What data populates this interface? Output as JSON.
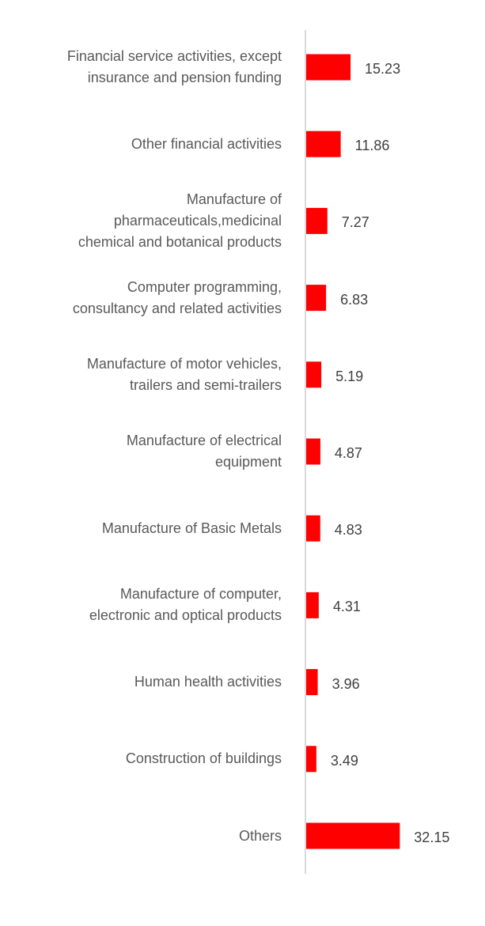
{
  "chart_data": {
    "type": "bar",
    "orientation": "horizontal",
    "title": "",
    "xlabel": "",
    "ylabel": "",
    "grid": false,
    "bar_color": "#ff0000",
    "categories": [
      "Financial service activities, except\ninsurance and pension funding",
      "Other financial activities",
      "Manufacture of\npharmaceuticals,medicinal\nchemical and botanical products",
      "Computer programming,\nconsultancy and related activities",
      "Manufacture of motor vehicles,\ntrailers and semi-trailers",
      "Manufacture of electrical\nequipment",
      "Manufacture of Basic Metals",
      "Manufacture of computer,\nelectronic and optical products",
      "Human health activities",
      "Construction of buildings",
      "Others"
    ],
    "values": [
      15.23,
      11.86,
      7.27,
      6.83,
      5.19,
      4.87,
      4.83,
      4.31,
      3.96,
      3.49,
      32.15
    ],
    "value_labels": [
      "15.23",
      "11.86",
      "7.27",
      "6.83",
      "5.19",
      "4.87",
      "4.83",
      "4.31",
      "3.96",
      "3.49",
      "32.15"
    ]
  }
}
